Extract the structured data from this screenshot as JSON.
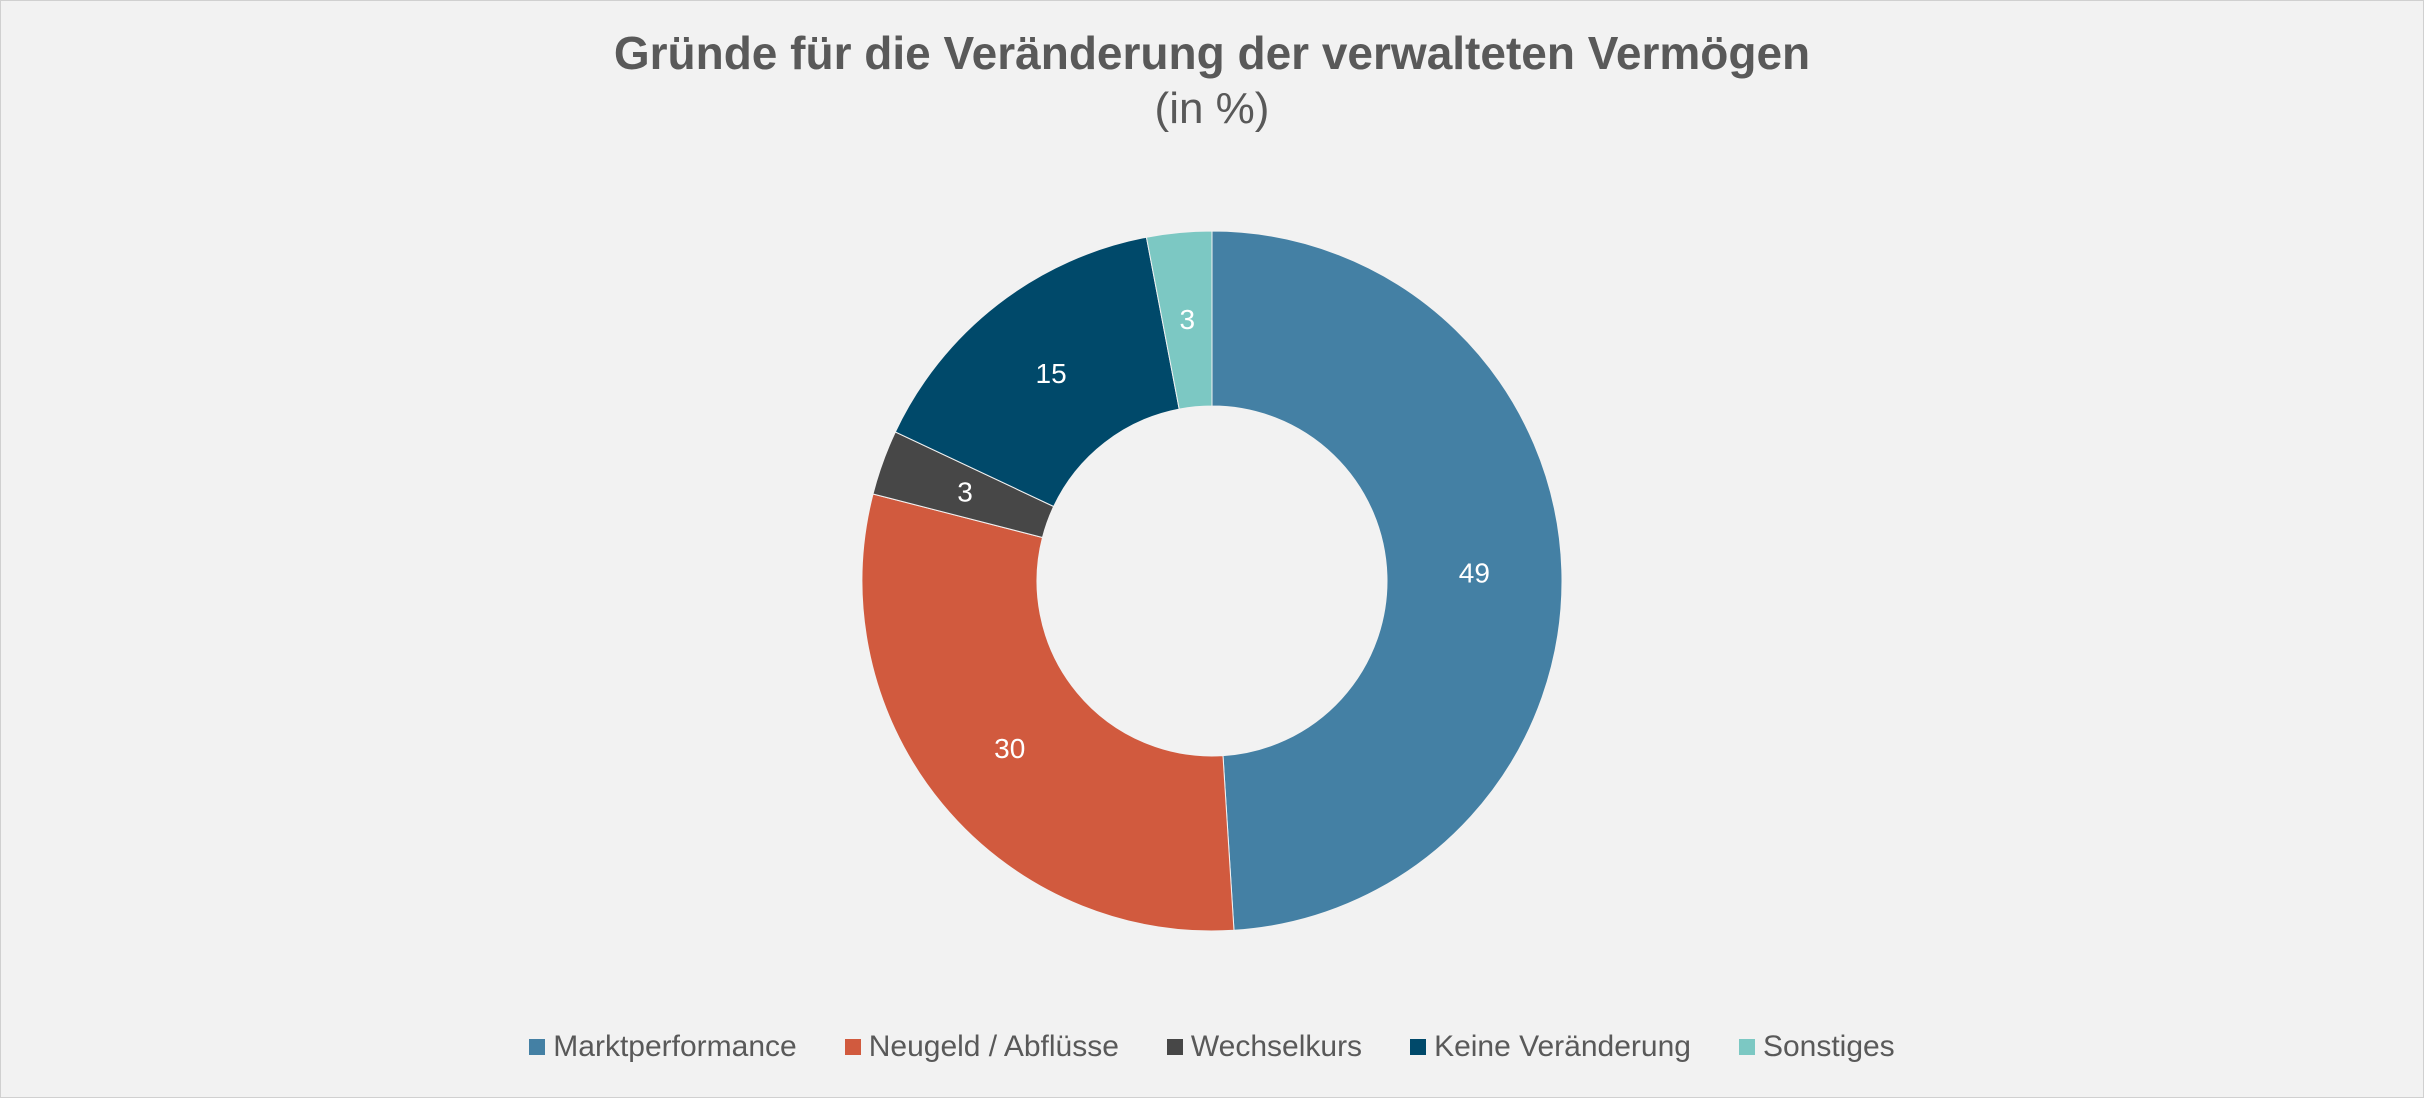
{
  "chart_data": {
    "type": "pie",
    "title": "Gründe für die Veränderung der verwalteten Vermögen",
    "subtitle": "(in %)",
    "donut": true,
    "legend_position": "bottom",
    "slices": [
      {
        "label": "Marktperformance",
        "value": 49,
        "color": "#4480a4"
      },
      {
        "label": "Neugeld / Abflüsse",
        "value": 30,
        "color": "#d15a3e"
      },
      {
        "label": "Wechselkurs",
        "value": 3,
        "color": "#474747"
      },
      {
        "label": "Keine Veränderung",
        "value": 15,
        "color": "#00496a"
      },
      {
        "label": "Sonstiges",
        "value": 3,
        "color": "#7cc8c3"
      }
    ]
  }
}
